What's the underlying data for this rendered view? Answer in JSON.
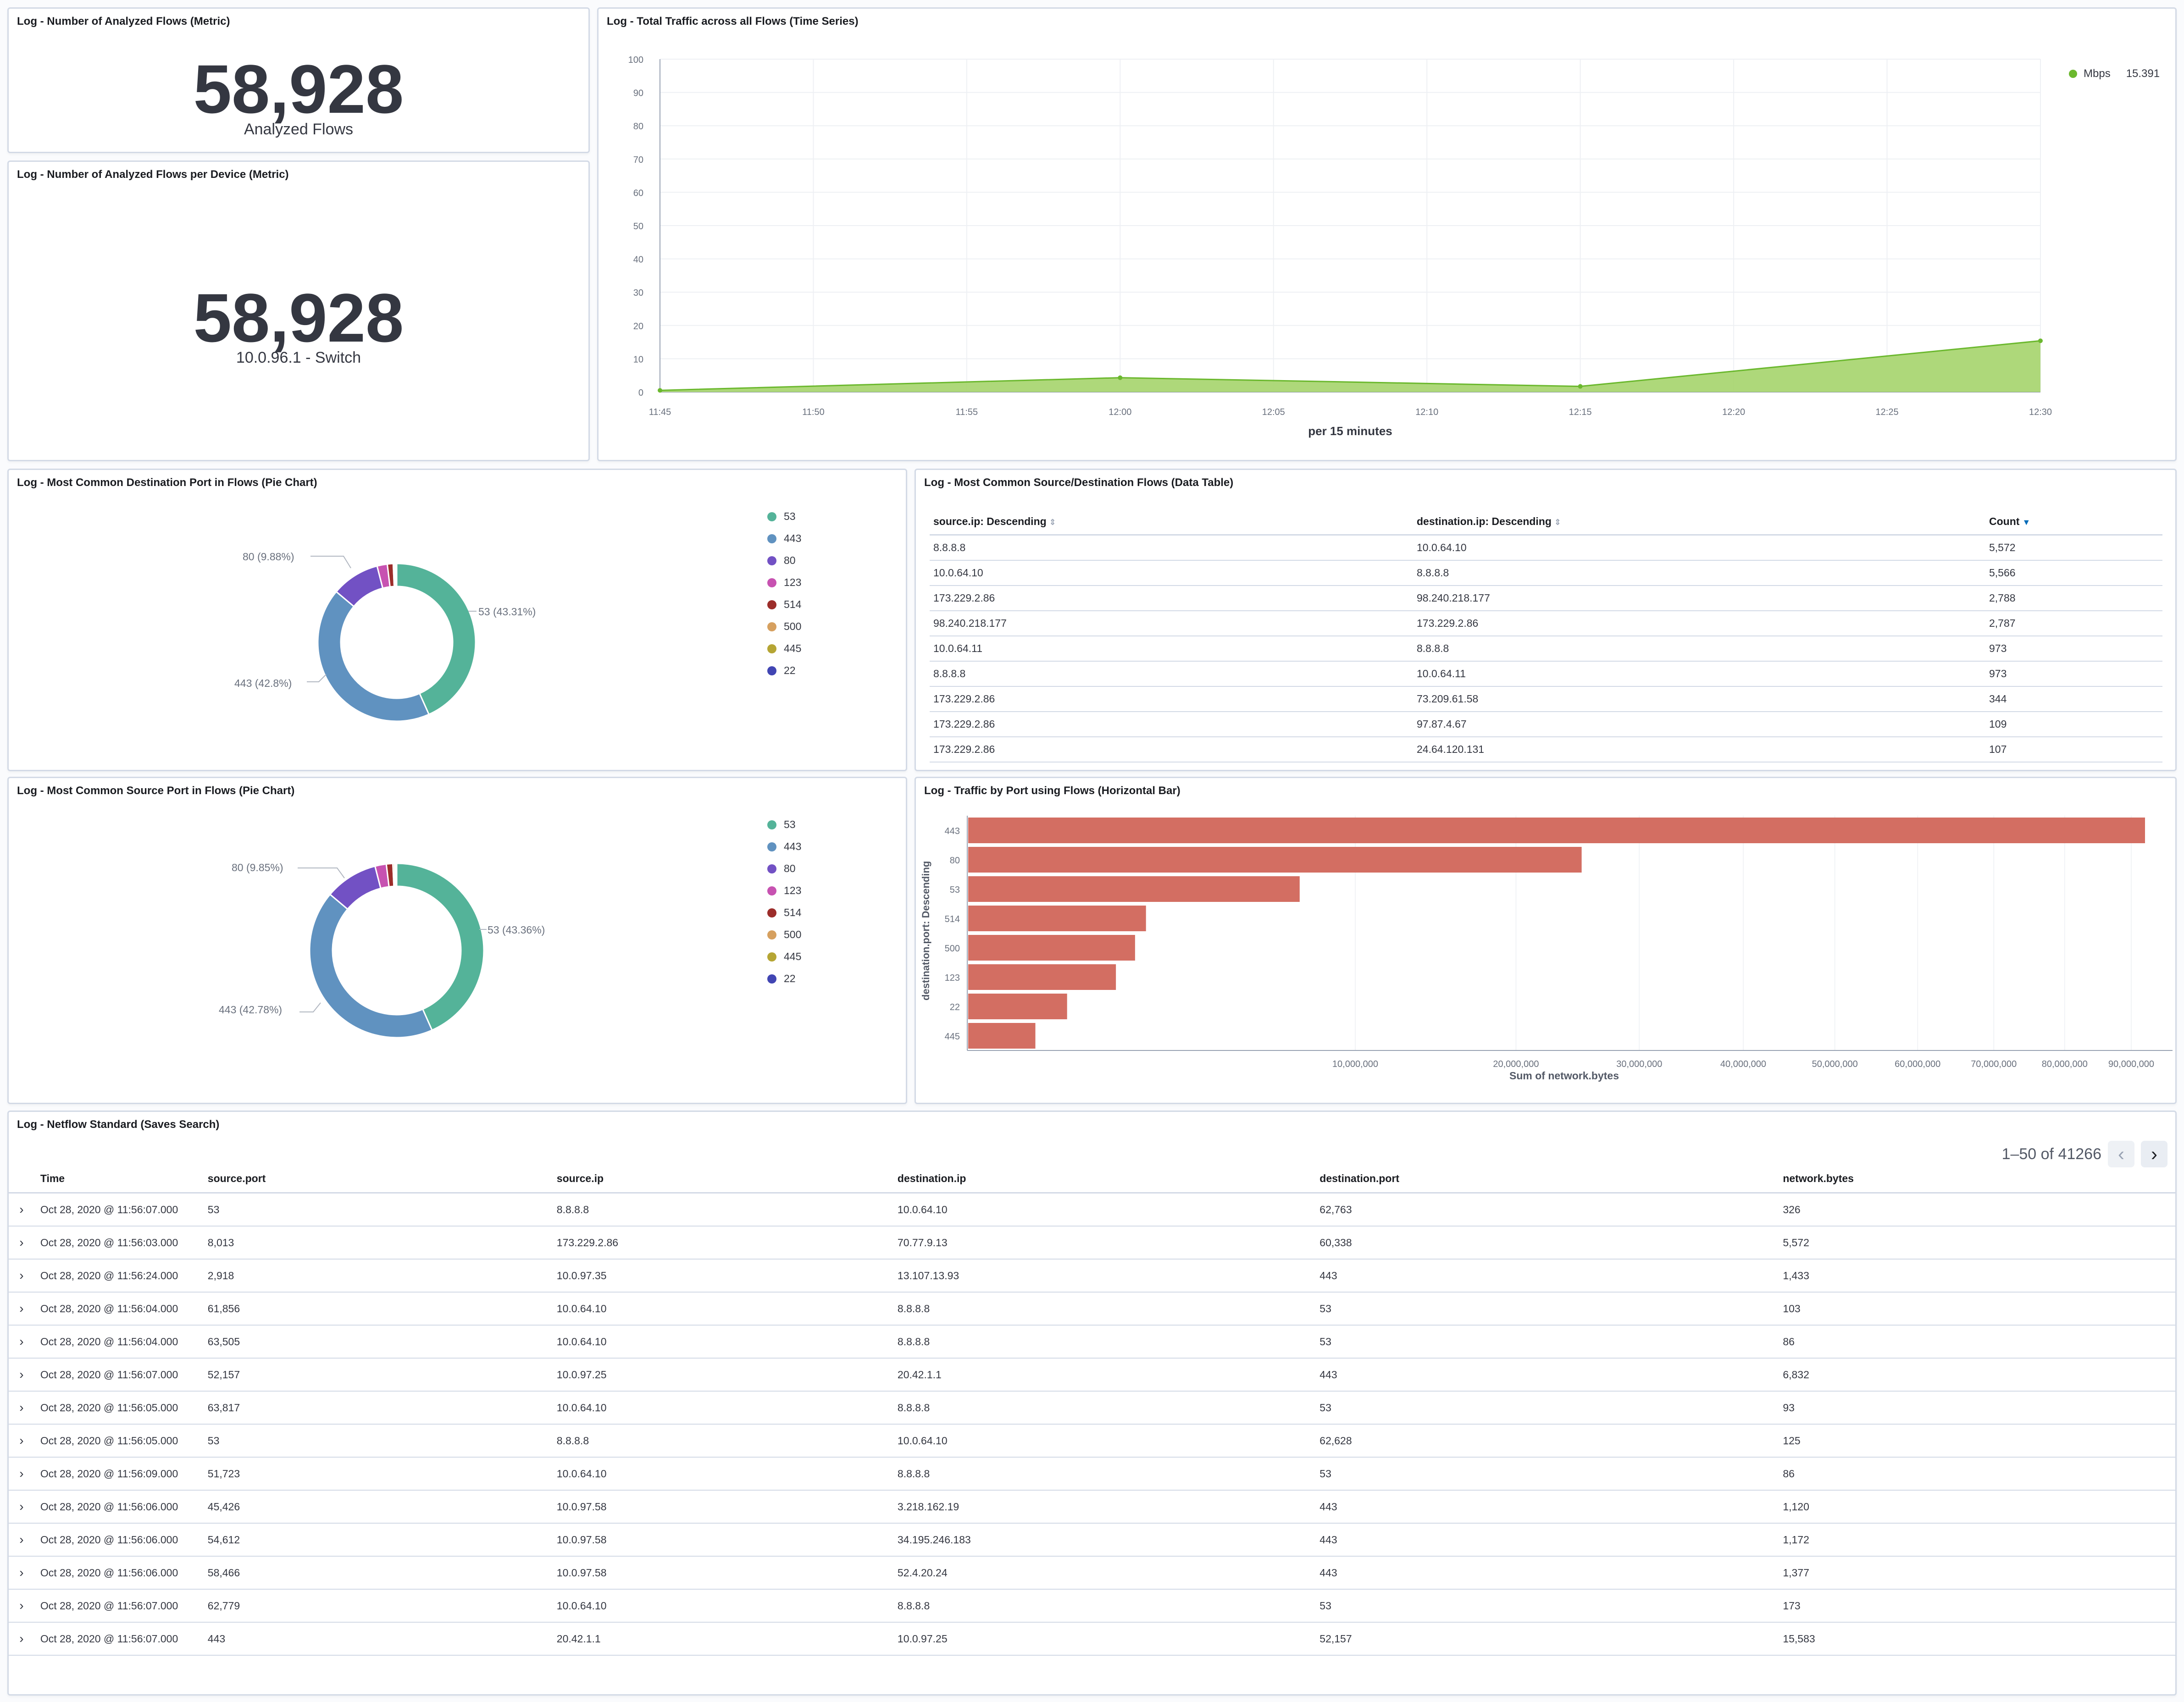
{
  "metric_total": {
    "title": "Log - Number of Analyzed Flows (Metric)",
    "value": "58,928",
    "label": "Analyzed Flows"
  },
  "metric_device": {
    "title": "Log - Number of Analyzed Flows per Device (Metric)",
    "value": "58,928",
    "label": "10.0.96.1 - Switch"
  },
  "traffic_timeseries": {
    "title": "Log - Total Traffic across all Flows (Time Series)",
    "xlabel": "per 15 minutes",
    "legend_label": "Mbps",
    "legend_value": "15.391",
    "color": "#a5d46c",
    "line_color": "#6bb82e"
  },
  "dest_port_pie": {
    "title": "Log - Most Common Destination Port in Flows (Pie Chart)",
    "label_80": "80 (9.88%)",
    "label_53": "53 (43.31%)",
    "label_443": "443 (42.8%)"
  },
  "source_port_pie": {
    "title": "Log - Most Common Source Port in Flows (Pie Chart)",
    "label_80": "80 (9.85%)",
    "label_53": "53 (43.36%)",
    "label_443": "443 (42.78%)"
  },
  "flows_table": {
    "title": "Log - Most Common Source/Destination Flows (Data Table)",
    "columns": [
      "source.ip: Descending",
      "destination.ip: Descending",
      "Count"
    ],
    "rows": [
      [
        "8.8.8.8",
        "10.0.64.10",
        "5,572"
      ],
      [
        "10.0.64.10",
        "8.8.8.8",
        "5,566"
      ],
      [
        "173.229.2.86",
        "98.240.218.177",
        "2,788"
      ],
      [
        "98.240.218.177",
        "173.229.2.86",
        "2,787"
      ],
      [
        "10.0.64.11",
        "8.8.8.8",
        "973"
      ],
      [
        "8.8.8.8",
        "10.0.64.11",
        "973"
      ],
      [
        "173.229.2.86",
        "73.209.61.58",
        "344"
      ],
      [
        "173.229.2.86",
        "97.87.4.67",
        "109"
      ],
      [
        "173.229.2.86",
        "24.64.120.131",
        "107"
      ]
    ]
  },
  "traffic_bar": {
    "title": "Log - Traffic by Port using Flows (Horizontal Bar)",
    "ylabel": "destination.port: Descending",
    "xlabel": "Sum of network.bytes",
    "color": "#d36e62"
  },
  "discover": {
    "title": "Log - Netflow Standard (Saves Search)",
    "pagination": "1–50 of 41266",
    "columns": [
      "Time",
      "source.port",
      "source.ip",
      "destination.ip",
      "destination.port",
      "network.bytes"
    ],
    "rows": [
      [
        "Oct 28, 2020 @ 11:56:07.000",
        "53",
        "8.8.8.8",
        "10.0.64.10",
        "62,763",
        "326"
      ],
      [
        "Oct 28, 2020 @ 11:56:03.000",
        "8,013",
        "173.229.2.86",
        "70.77.9.13",
        "60,338",
        "5,572"
      ],
      [
        "Oct 28, 2020 @ 11:56:24.000",
        "2,918",
        "10.0.97.35",
        "13.107.13.93",
        "443",
        "1,433"
      ],
      [
        "Oct 28, 2020 @ 11:56:04.000",
        "61,856",
        "10.0.64.10",
        "8.8.8.8",
        "53",
        "103"
      ],
      [
        "Oct 28, 2020 @ 11:56:04.000",
        "63,505",
        "10.0.64.10",
        "8.8.8.8",
        "53",
        "86"
      ],
      [
        "Oct 28, 2020 @ 11:56:07.000",
        "52,157",
        "10.0.97.25",
        "20.42.1.1",
        "443",
        "6,832"
      ],
      [
        "Oct 28, 2020 @ 11:56:05.000",
        "63,817",
        "10.0.64.10",
        "8.8.8.8",
        "53",
        "93"
      ],
      [
        "Oct 28, 2020 @ 11:56:05.000",
        "53",
        "8.8.8.8",
        "10.0.64.10",
        "62,628",
        "125"
      ],
      [
        "Oct 28, 2020 @ 11:56:09.000",
        "51,723",
        "10.0.64.10",
        "8.8.8.8",
        "53",
        "86"
      ],
      [
        "Oct 28, 2020 @ 11:56:06.000",
        "45,426",
        "10.0.97.58",
        "3.218.162.19",
        "443",
        "1,120"
      ],
      [
        "Oct 28, 2020 @ 11:56:06.000",
        "54,612",
        "10.0.97.58",
        "34.195.246.183",
        "443",
        "1,172"
      ],
      [
        "Oct 28, 2020 @ 11:56:06.000",
        "58,466",
        "10.0.97.58",
        "52.4.20.24",
        "443",
        "1,377"
      ],
      [
        "Oct 28, 2020 @ 11:56:07.000",
        "62,779",
        "10.0.64.10",
        "8.8.8.8",
        "53",
        "173"
      ],
      [
        "Oct 28, 2020 @ 11:56:07.000",
        "443",
        "20.42.1.1",
        "10.0.97.25",
        "52,157",
        "15,583"
      ]
    ]
  },
  "chart_data": [
    {
      "type": "area",
      "title": "Log - Total Traffic across all Flows (Time Series)",
      "xlabel": "per 15 minutes",
      "ylabel": "",
      "x_ticks": [
        "11:45",
        "11:50",
        "11:55",
        "12:00",
        "12:05",
        "12:10",
        "12:15",
        "12:20",
        "12:25",
        "12:30"
      ],
      "y_ticks": [
        "0",
        "10",
        "20",
        "30",
        "40",
        "50",
        "60",
        "70",
        "80",
        "90",
        "100"
      ],
      "ylim": [
        0,
        100
      ],
      "series": [
        {
          "name": "Mbps",
          "x": [
            "11:45",
            "12:00",
            "12:15",
            "12:30"
          ],
          "values": [
            0.5,
            4.3,
            1.7,
            15.391
          ]
        }
      ],
      "grid": true,
      "legend": "top-right"
    },
    {
      "type": "pie",
      "title": "Log - Most Common Destination Port in Flows (Pie Chart)",
      "categories": [
        "53",
        "443",
        "80",
        "123",
        "514",
        "500",
        "445",
        "22"
      ],
      "values": [
        43.31,
        42.8,
        9.88,
        2.1,
        1.2,
        0.3,
        0.2,
        0.21
      ],
      "colors": [
        "#54b399",
        "#6092c0",
        "#7251c4",
        "#c752b1",
        "#9c2d2a",
        "#d6a05f",
        "#b5a534",
        "#4145b3"
      ],
      "legend": "right"
    },
    {
      "type": "pie",
      "title": "Log - Most Common Source Port in Flows (Pie Chart)",
      "categories": [
        "53",
        "443",
        "80",
        "123",
        "514",
        "500",
        "445",
        "22"
      ],
      "values": [
        43.36,
        42.78,
        9.85,
        2.1,
        1.2,
        0.3,
        0.2,
        0.21
      ],
      "colors": [
        "#54b399",
        "#6092c0",
        "#7251c4",
        "#c752b1",
        "#9c2d2a",
        "#d6a05f",
        "#b5a534",
        "#4145b3"
      ],
      "legend": "right"
    },
    {
      "type": "bar",
      "orientation": "horizontal",
      "title": "Log - Traffic by Port using Flows (Horizontal Bar)",
      "categories": [
        "443",
        "80",
        "53",
        "514",
        "500",
        "123",
        "22",
        "445"
      ],
      "values": [
        92000000,
        25000000,
        7300000,
        2100000,
        1850000,
        1450000,
        650000,
        300000
      ],
      "x_ticks": [
        "10,000,000",
        "20,000,000",
        "30,000,000",
        "40,000,000",
        "50,000,000",
        "60,000,000",
        "70,000,000",
        "80,000,000",
        "90,000,000"
      ],
      "xlabel": "Sum of network.bytes",
      "ylabel": "destination.port: Descending",
      "x_scale": "sqrt",
      "xlim": [
        0,
        92000000
      ]
    }
  ]
}
